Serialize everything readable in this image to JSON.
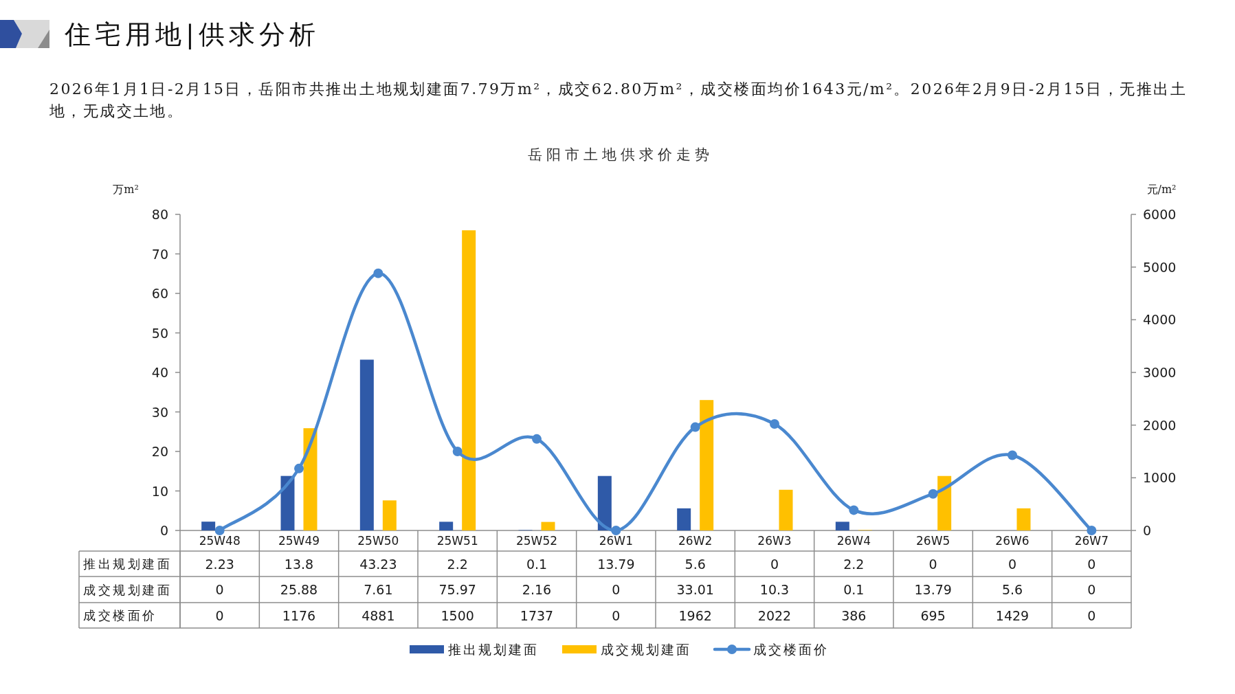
{
  "chart_data": {
    "type": "bar",
    "title": "住宅用地|供求分析",
    "subtitle": "岳阳市土地供求价走势",
    "annotations": [
      "2026年1月1日-2月15日，岳阳市共推出土地规划建面7.79万m²，成交62.80万m²，成交楼面均价1643元/m²。2026年2月9日-2月15日，无推出土地，无成交土地。"
    ],
    "ylabel": "万m²",
    "y2label": "元/m²",
    "categories": [
      "25W48",
      "25W49",
      "25W50",
      "25W51",
      "25W52",
      "26W1",
      "26W2",
      "26W3",
      "26W4",
      "26W5",
      "26W6",
      "26W7"
    ],
    "series": [
      {
        "name": "推出规划建面",
        "color": "#2f5aa8",
        "values": [
          2.23,
          13.8,
          43.23,
          2.2,
          0.1,
          13.79,
          5.6,
          0,
          2.2,
          0,
          0,
          0
        ]
      },
      {
        "name": "成交规划建面",
        "color": "#ffc000",
        "values": [
          0,
          25.88,
          7.61,
          75.97,
          2.16,
          0,
          33.01,
          10.3,
          0.1,
          13.79,
          5.6,
          0
        ]
      },
      {
        "name": "成交楼面价",
        "type": "line",
        "axis": "y2",
        "color": "#4a88cf",
        "marker": "circle",
        "values": [
          0,
          1176,
          4881,
          1500,
          1737,
          0,
          1962,
          2022,
          386,
          695,
          1429,
          0
        ]
      }
    ],
    "ylim": [
      0,
      80
    ],
    "yticks": [
      0,
      10,
      20,
      30,
      40,
      50,
      60,
      70,
      80
    ],
    "y2lim": [
      0,
      6000
    ],
    "y2ticks": [
      0,
      1000,
      2000,
      3000,
      4000,
      5000,
      6000
    ],
    "data_labels": true,
    "legend": "bottom"
  }
}
